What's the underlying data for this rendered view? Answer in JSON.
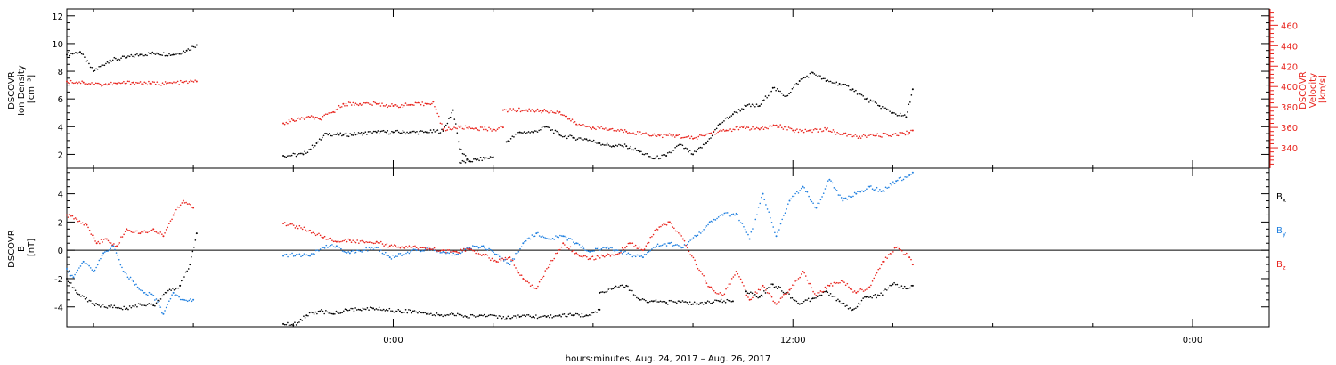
{
  "colors": {
    "black": "#000000",
    "red": "#e8231c",
    "blue": "#1e7fe0"
  },
  "chart_data": [
    {
      "type": "scatter",
      "panel": "plasma",
      "ylabel_lines": [
        "DSCOVR",
        "Ion Density",
        "[cm⁻³]"
      ],
      "ylabel_right_lines": [
        "DSCOVR",
        "Velocity",
        "[km/s]"
      ],
      "ylim": [
        1,
        12.5
      ],
      "ylim_right": [
        320,
        476
      ],
      "yticks": [
        "2",
        "4",
        "6",
        "8",
        "10",
        "12"
      ],
      "yticks_right": [
        "340",
        "360",
        "380",
        "400",
        "420",
        "440",
        "460"
      ],
      "xlim": [
        -9.8,
        26.3
      ],
      "series": [
        {
          "key": "density",
          "axis": "left",
          "color": "black",
          "segments": [
            {
              "x": [
                -9.8,
                -9.4,
                -9.0,
                -8.5,
                -8.0,
                -7.6,
                -7.1,
                -6.6,
                -6.2,
                -5.9
              ],
              "y": [
                9.2,
                9.4,
                8.0,
                8.8,
                9.0,
                9.2,
                9.3,
                9.2,
                9.5,
                9.9
              ]
            },
            {
              "x": [
                -3.3,
                -2.7,
                -2.3,
                -2.0,
                -1.5,
                -1.0,
                -0.5,
                0.0,
                0.5,
                1.0,
                1.5,
                1.8,
                2.0,
                2.3
              ],
              "y": [
                1.9,
                2.0,
                2.8,
                3.5,
                3.4,
                3.5,
                3.6,
                3.6,
                3.6,
                3.6,
                3.7,
                5.2,
                2.4,
                1.5
              ]
            },
            {
              "x": [
                2.0,
                2.5,
                3.0
              ],
              "y": [
                1.4,
                1.6,
                1.8
              ]
            },
            {
              "x": [
                3.4,
                3.8,
                4.2,
                4.6,
                5.0,
                5.4,
                5.8,
                6.2,
                6.6,
                7.0,
                7.4,
                7.8,
                8.2,
                8.6,
                9.0,
                9.4,
                9.8,
                10.2,
                10.6,
                11.0,
                11.4,
                11.8,
                12.2,
                12.6,
                13.0,
                13.4,
                13.8,
                14.2,
                14.6,
                15.0,
                15.4,
                15.6
              ],
              "y": [
                2.9,
                3.6,
                3.6,
                4.0,
                3.4,
                3.2,
                3.1,
                2.8,
                2.6,
                2.6,
                2.2,
                1.7,
                1.9,
                2.7,
                2.0,
                2.8,
                4.2,
                4.9,
                5.5,
                5.5,
                6.8,
                6.2,
                7.3,
                7.9,
                7.3,
                7.1,
                6.7,
                6.0,
                5.5,
                5.0,
                4.7,
                6.7
              ]
            }
          ]
        },
        {
          "key": "velocity",
          "axis": "right",
          "color": "red",
          "segments": [
            {
              "x": [
                -9.8,
                -9.3,
                -8.8,
                -8.3,
                -7.8,
                -7.3,
                -6.8,
                -6.3,
                -5.9
              ],
              "y": [
                405,
                404,
                402,
                403,
                404,
                403,
                403,
                404,
                405
              ]
            },
            {
              "x": [
                -3.3,
                -3.0,
                -2.5,
                -2.2,
                -1.8,
                -1.5,
                -1.0,
                -0.5,
                0.0,
                0.5,
                1.0,
                1.2,
                1.5,
                2.0,
                2.5,
                3.0,
                3.3
              ],
              "y": [
                364,
                367,
                370,
                368,
                375,
                383,
                383,
                383,
                381,
                382,
                383,
                385,
                358,
                360,
                359,
                358,
                360
              ]
            },
            {
              "x": [
                3.3,
                4.0,
                4.5,
                5.0,
                5.5,
                6.0,
                6.5,
                7.0,
                7.5,
                8.0,
                8.5,
                9.0,
                9.5,
                10.0,
                10.5,
                11.0,
                11.5,
                12.0,
                12.5,
                13.0,
                13.5,
                14.0,
                14.5,
                15.0,
                15.5,
                15.6
              ],
              "y": [
                377,
                377,
                376,
                375,
                363,
                360,
                358,
                356,
                354,
                352,
                352,
                349,
                354,
                357,
                360,
                358,
                362,
                357,
                357,
                358,
                353,
                351,
                352,
                353,
                355,
                357
              ]
            }
          ]
        }
      ]
    },
    {
      "type": "scatter",
      "panel": "magnetic",
      "ylabel_lines": [
        "DSCOVR",
        "B",
        "[nT]"
      ],
      "ylim": [
        -5.4,
        5.8
      ],
      "yticks": [
        "-4",
        "-2",
        "0",
        "2",
        "4"
      ],
      "zero_line": true,
      "xlim": [
        -9.8,
        26.3
      ],
      "legend": [
        {
          "label": "B",
          "sub": "x",
          "color": "black"
        },
        {
          "label": "B",
          "sub": "y",
          "color": "blue"
        },
        {
          "label": "B",
          "sub": "z",
          "color": "red"
        }
      ],
      "series": [
        {
          "key": "bx",
          "color": "black",
          "segments": [
            {
              "x": [
                -9.8,
                -9.5,
                -9.0,
                -8.5,
                -8.0,
                -7.6,
                -7.2,
                -6.8,
                -6.4,
                -6.1,
                -5.9
              ],
              "y": [
                -2.0,
                -3.0,
                -3.8,
                -4.0,
                -4.1,
                -3.8,
                -3.9,
                -3.0,
                -2.5,
                -1.0,
                1.2
              ]
            },
            {
              "x": [
                -3.3,
                -3.0,
                -2.6,
                -2.2,
                -1.8,
                -1.4,
                -1.0,
                -0.6,
                -0.2,
                0.2,
                0.6,
                1.0,
                1.4,
                1.8,
                2.2,
                2.6,
                3.0,
                3.4,
                3.8,
                4.2,
                4.6,
                5.0,
                5.4,
                5.8,
                6.2
              ],
              "y": [
                -5.2,
                -5.3,
                -4.6,
                -4.3,
                -4.5,
                -4.2,
                -4.2,
                -4.1,
                -4.2,
                -4.3,
                -4.3,
                -4.5,
                -4.6,
                -4.5,
                -4.7,
                -4.6,
                -4.6,
                -4.8,
                -4.7,
                -4.7,
                -4.7,
                -4.6,
                -4.6,
                -4.6,
                -4.2
              ]
            },
            {
              "x": [
                6.2,
                6.6,
                7.0,
                7.4,
                7.8,
                8.2,
                8.6,
                9.0,
                9.4,
                9.8,
                10.2
              ],
              "y": [
                -3.0,
                -2.7,
                -2.5,
                -3.5,
                -3.6,
                -3.7,
                -3.6,
                -3.8,
                -3.7,
                -3.6,
                -3.6
              ]
            },
            {
              "x": [
                10.6,
                11.0,
                11.4,
                11.8,
                12.2,
                12.6,
                13.0,
                13.4,
                13.8,
                14.2,
                14.6,
                15.0,
                15.4,
                15.6
              ],
              "y": [
                -2.9,
                -3.3,
                -2.4,
                -3.0,
                -3.8,
                -3.4,
                -2.9,
                -3.6,
                -4.2,
                -3.3,
                -3.2,
                -2.4,
                -2.7,
                -2.5
              ]
            }
          ]
        },
        {
          "key": "by",
          "color": "blue",
          "segments": [
            {
              "x": [
                -9.8,
                -9.6,
                -9.3,
                -9.0,
                -8.7,
                -8.4,
                -8.1,
                -7.8,
                -7.5,
                -7.2,
                -6.9,
                -6.6,
                -6.3,
                -6.0
              ],
              "y": [
                -1.3,
                -1.9,
                -0.8,
                -1.5,
                -0.2,
                0.3,
                -1.5,
                -2.2,
                -3.0,
                -3.2,
                -4.5,
                -3.0,
                -3.5,
                -3.5
              ]
            },
            {
              "x": [
                -3.3,
                -2.9,
                -2.5,
                -2.1,
                -1.7,
                -1.3,
                -0.9,
                -0.5,
                -0.1,
                0.3,
                0.7,
                1.1,
                1.5,
                1.9,
                2.3,
                2.7,
                3.1,
                3.5,
                3.9,
                4.3,
                4.7,
                5.1,
                5.5,
                5.9,
                6.3,
                6.7,
                7.1,
                7.5,
                7.9,
                8.3,
                8.7,
                9.1,
                9.5,
                9.9,
                10.3,
                10.7,
                11.1,
                11.5,
                11.9,
                12.3,
                12.7,
                13.1,
                13.5,
                13.9,
                14.3,
                14.7,
                15.1,
                15.5,
                15.6
              ],
              "y": [
                -0.4,
                -0.3,
                -0.4,
                0.2,
                0.3,
                -0.2,
                0.0,
                0.2,
                -0.5,
                -0.3,
                0.0,
                0.1,
                -0.1,
                -0.3,
                0.2,
                0.3,
                -0.3,
                -1.0,
                0.5,
                1.2,
                0.8,
                1.0,
                0.5,
                -0.1,
                0.2,
                0.0,
                -0.3,
                -0.5,
                0.3,
                0.5,
                0.2,
                1.0,
                2.0,
                2.5,
                2.6,
                0.8,
                4.0,
                1.0,
                3.5,
                4.5,
                3.0,
                5.0,
                3.5,
                4.0,
                4.5,
                4.2,
                4.9,
                5.3,
                5.5
              ]
            }
          ]
        },
        {
          "key": "bz",
          "color": "red",
          "segments": [
            {
              "x": [
                -9.8,
                -9.5,
                -9.2,
                -8.9,
                -8.6,
                -8.3,
                -8.0,
                -7.6,
                -7.2,
                -6.9,
                -6.6,
                -6.3,
                -6.0
              ],
              "y": [
                2.5,
                2.2,
                1.8,
                0.5,
                0.8,
                0.3,
                1.5,
                1.2,
                1.5,
                1.0,
                2.5,
                3.5,
                3.0
              ]
            },
            {
              "x": [
                -3.3,
                -2.9,
                -2.5,
                -2.1,
                -1.7,
                -1.3,
                -0.9,
                -0.5,
                -0.1,
                0.3,
                0.7,
                1.1,
                1.5,
                1.9,
                2.3,
                2.7,
                3.1,
                3.5,
                3.9,
                4.3,
                4.7,
                5.1,
                5.5,
                5.9,
                6.3,
                6.7,
                7.1,
                7.5,
                7.9,
                8.3,
                8.7,
                9.1,
                9.5,
                9.9,
                10.3,
                10.7,
                11.1,
                11.5,
                11.9,
                12.3,
                12.7,
                13.1,
                13.5,
                13.9,
                14.3,
                14.7,
                15.1,
                15.5,
                15.6
              ],
              "y": [
                1.9,
                1.7,
                1.4,
                0.9,
                0.6,
                0.7,
                0.6,
                0.6,
                0.3,
                0.2,
                0.2,
                0.1,
                0.0,
                -0.1,
                0.1,
                -0.3,
                -0.8,
                -0.5,
                -2.0,
                -2.7,
                -1.0,
                0.5,
                -0.2,
                -0.6,
                -0.4,
                -0.3,
                0.5,
                0.0,
                1.5,
                2.0,
                0.8,
                -1.0,
                -2.6,
                -3.2,
                -1.5,
                -3.5,
                -2.5,
                -3.8,
                -2.8,
                -1.5,
                -3.2,
                -2.5,
                -2.2,
                -3.0,
                -2.6,
                -0.8,
                0.2,
                -0.5,
                -1.0
              ]
            }
          ]
        }
      ]
    }
  ],
  "x_axis": {
    "ticks": [
      {
        "x": 0,
        "label": "0:00"
      },
      {
        "x": 12,
        "label": "12:00"
      },
      {
        "x": 24,
        "label": "0:00"
      }
    ],
    "title": "hours:minutes, Aug. 24, 2017 – Aug. 26, 2017"
  }
}
